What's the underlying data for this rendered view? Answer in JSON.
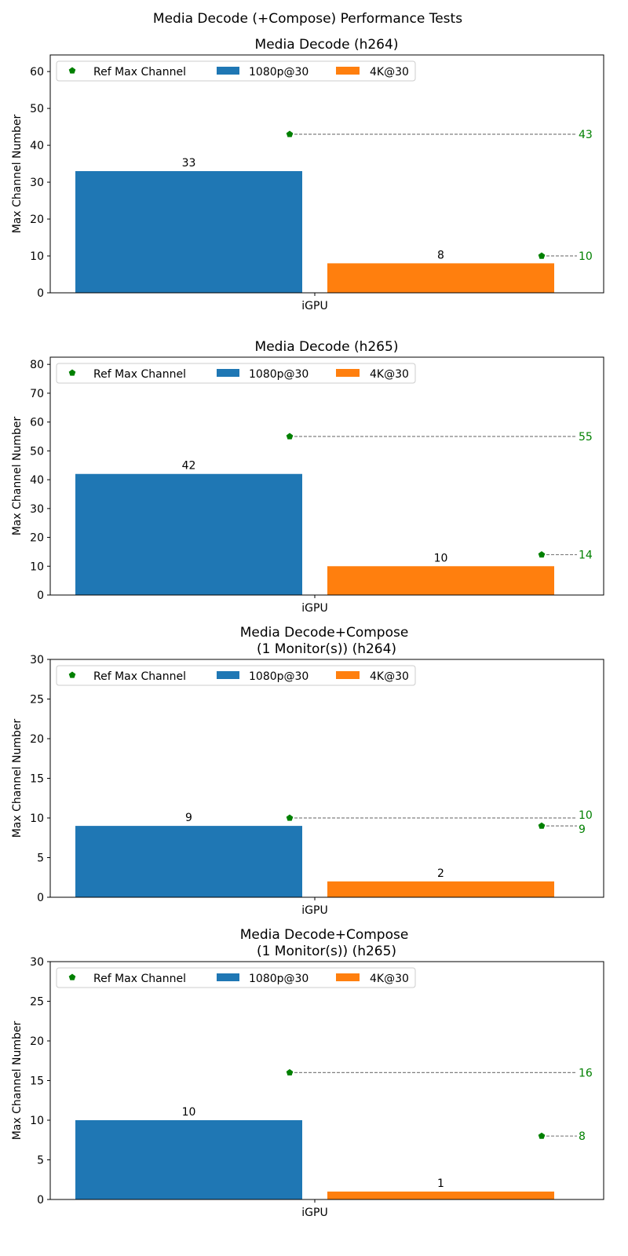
{
  "figure_title": "Media Decode (+Compose) Performance Tests",
  "colors": {
    "series1": "#1f77b4",
    "series2": "#ff7f0e",
    "ref": "#008000",
    "refline": "#808080"
  },
  "legend": {
    "ref_label": "Ref Max Channel",
    "series": [
      "1080p@30",
      "4K@30"
    ],
    "placement": "upper-left"
  },
  "chart_data": [
    {
      "type": "bar",
      "title": [
        "Media Decode (h264)"
      ],
      "categories": [
        "iGPU"
      ],
      "xlabel": "",
      "ylabel": "Max Channel Number",
      "ylim": [
        0,
        64.5
      ],
      "yticks": [
        0,
        10,
        20,
        30,
        40,
        50,
        60
      ],
      "series": [
        {
          "name": "1080p@30",
          "values": [
            33
          ]
        },
        {
          "name": "4K@30",
          "values": [
            8
          ]
        }
      ],
      "ref": [
        43,
        10
      ]
    },
    {
      "type": "bar",
      "title": [
        "Media Decode (h265)"
      ],
      "categories": [
        "iGPU"
      ],
      "xlabel": "",
      "ylabel": "Max Channel Number",
      "ylim": [
        0,
        82.5
      ],
      "yticks": [
        0,
        10,
        20,
        30,
        40,
        50,
        60,
        70,
        80
      ],
      "series": [
        {
          "name": "1080p@30",
          "values": [
            42
          ]
        },
        {
          "name": "4K@30",
          "values": [
            10
          ]
        }
      ],
      "ref": [
        55,
        14
      ]
    },
    {
      "type": "bar",
      "title": [
        "Media Decode+Compose",
        "(1 Monitor(s)) (h264)"
      ],
      "categories": [
        "iGPU"
      ],
      "xlabel": "",
      "ylabel": "Max Channel Number",
      "ylim": [
        0,
        30
      ],
      "yticks": [
        0,
        5,
        10,
        15,
        20,
        25,
        30
      ],
      "series": [
        {
          "name": "1080p@30",
          "values": [
            9
          ]
        },
        {
          "name": "4K@30",
          "values": [
            2
          ]
        }
      ],
      "ref": [
        10,
        9
      ]
    },
    {
      "type": "bar",
      "title": [
        "Media Decode+Compose",
        "(1 Monitor(s)) (h265)"
      ],
      "categories": [
        "iGPU"
      ],
      "xlabel": "",
      "ylabel": "Max Channel Number",
      "ylim": [
        0,
        30
      ],
      "yticks": [
        0,
        5,
        10,
        15,
        20,
        25,
        30
      ],
      "series": [
        {
          "name": "1080p@30",
          "values": [
            10
          ]
        },
        {
          "name": "4K@30",
          "values": [
            1
          ]
        }
      ],
      "ref": [
        16,
        8
      ]
    }
  ]
}
